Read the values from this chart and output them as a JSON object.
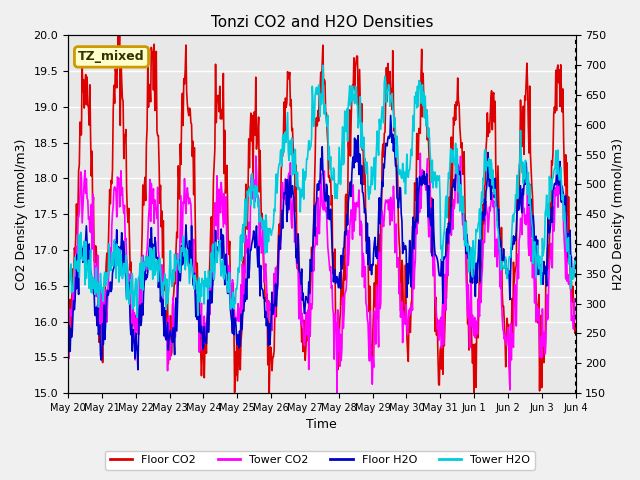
{
  "title": "Tonzi CO2 and H2O Densities",
  "xlabel": "Time",
  "ylabel_left": "CO2 Density (mmol/m3)",
  "ylabel_right": "H2O Density (mmol/m3)",
  "co2_ylim": [
    15.0,
    20.0
  ],
  "h2o_ylim": [
    150,
    750
  ],
  "annotation_text": "TZ_mixed",
  "annotation_color": "#cc9900",
  "annotation_bg": "#ffffcc",
  "colors": {
    "floor_co2": "#dd0000",
    "tower_co2": "#ff00ff",
    "floor_h2o": "#0000cc",
    "tower_h2o": "#00ccdd"
  },
  "legend_labels": [
    "Floor CO2",
    "Tower CO2",
    "Floor H2O",
    "Tower H2O"
  ],
  "bg_color": "#e8e8e8",
  "grid_color": "#ffffff",
  "xtick_labels": [
    "May 20",
    "May 21",
    "May 22",
    "May 23",
    "May 24",
    "May 25",
    "May 26",
    "May 27",
    "May 28",
    "May 29",
    "May 30",
    "May 31",
    "Jun 1",
    "Jun 2",
    "Jun 3",
    "Jun 4"
  ],
  "n_days": 15,
  "seed": 42
}
